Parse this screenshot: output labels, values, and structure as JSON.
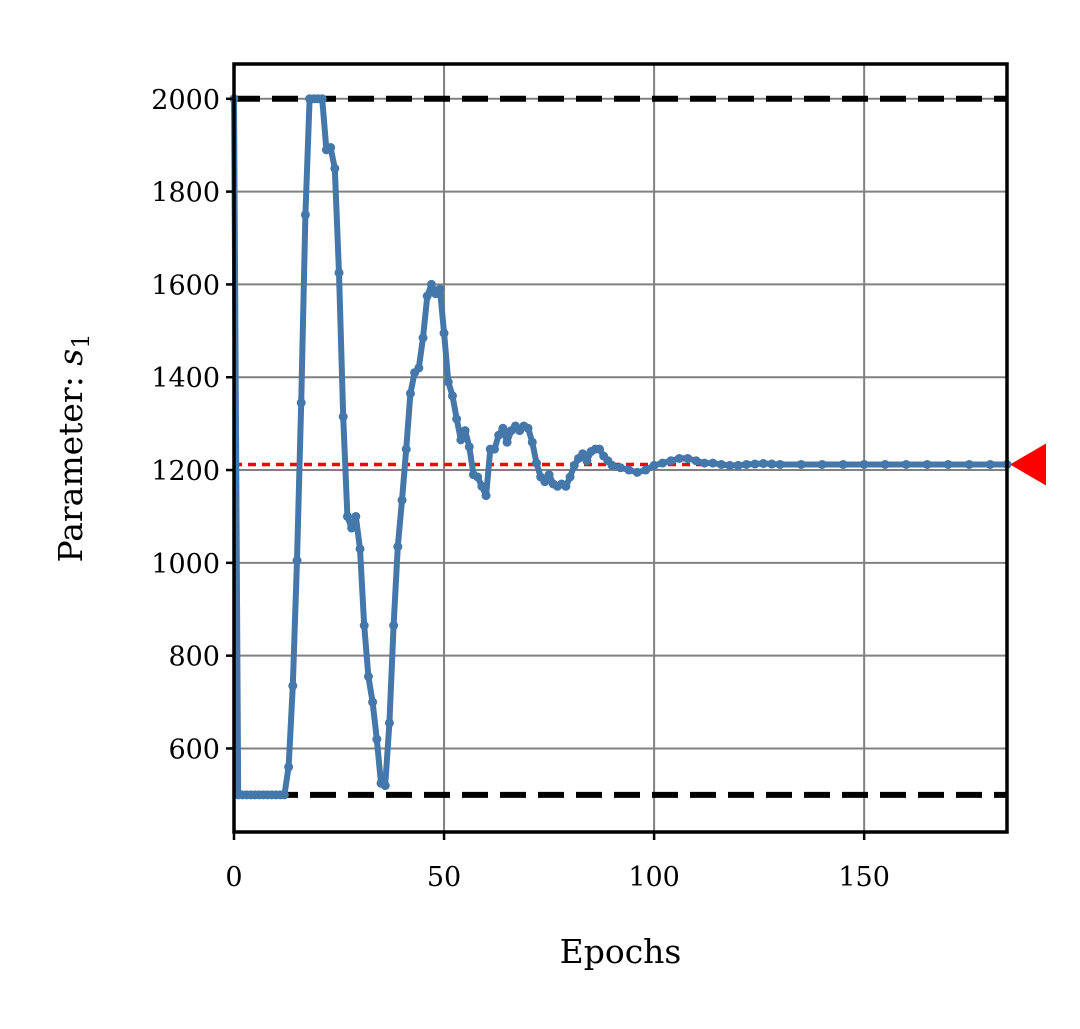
{
  "chart_data": {
    "type": "line",
    "title": "",
    "xlabel": "Epochs",
    "ylabel_text": "Parameter: ",
    "ylabel_symbol": "s",
    "ylabel_subscript": "1",
    "xlim": [
      0,
      184
    ],
    "ylim": [
      420,
      2075
    ],
    "xticks": [
      0,
      50,
      100,
      150
    ],
    "yticks": [
      600,
      800,
      1000,
      1200,
      1400,
      1600,
      1800,
      2000
    ],
    "grid": true,
    "legend": "none",
    "bounds": {
      "upper": 2000,
      "lower": 500
    },
    "target": 1212,
    "colors": {
      "series": "#4477aa",
      "bounds": "#000000",
      "target": "#ff0000"
    },
    "series": [
      {
        "x": [
          0,
          1,
          2,
          3,
          4,
          5,
          6,
          7,
          8,
          9,
          10,
          11,
          12,
          13,
          14,
          15,
          16,
          17,
          18,
          19,
          20,
          21,
          22,
          23,
          24,
          25,
          26,
          27,
          28,
          29,
          30,
          31,
          32,
          33,
          34,
          35,
          36,
          37,
          38,
          39,
          40,
          41,
          42,
          43,
          44,
          45,
          46,
          47,
          48,
          49,
          50,
          51,
          52,
          53,
          54,
          55,
          56,
          57,
          58,
          59,
          60,
          61,
          62,
          63,
          64,
          65,
          66,
          67,
          68,
          69,
          70,
          71,
          72,
          73,
          74,
          75,
          76,
          77,
          78,
          79,
          80,
          81,
          82,
          83,
          84,
          85,
          86,
          87,
          88,
          89,
          90,
          92,
          94,
          96,
          98,
          100,
          102,
          104,
          106,
          108,
          110,
          112,
          114,
          116,
          118,
          120,
          122,
          124,
          126,
          128,
          130,
          135,
          140,
          145,
          150,
          155,
          160,
          165,
          170,
          175,
          180,
          184
        ],
        "values": [
          2000,
          500,
          500,
          500,
          500,
          500,
          500,
          500,
          500,
          500,
          500,
          500,
          500,
          560,
          735,
          1005,
          1345,
          1750,
          2000,
          2000,
          2000,
          2000,
          1890,
          1895,
          1850,
          1625,
          1315,
          1100,
          1075,
          1100,
          1030,
          865,
          755,
          700,
          620,
          525,
          520,
          655,
          865,
          1035,
          1135,
          1245,
          1365,
          1410,
          1420,
          1485,
          1575,
          1600,
          1580,
          1590,
          1495,
          1390,
          1360,
          1310,
          1265,
          1285,
          1250,
          1190,
          1185,
          1165,
          1145,
          1245,
          1245,
          1275,
          1290,
          1260,
          1285,
          1295,
          1285,
          1295,
          1290,
          1260,
          1215,
          1185,
          1175,
          1190,
          1170,
          1165,
          1170,
          1165,
          1185,
          1210,
          1225,
          1235,
          1220,
          1240,
          1245,
          1245,
          1230,
          1220,
          1210,
          1205,
          1200,
          1195,
          1200,
          1210,
          1215,
          1220,
          1225,
          1225,
          1220,
          1215,
          1215,
          1212,
          1210,
          1210,
          1212,
          1213,
          1214,
          1213,
          1212,
          1212,
          1212,
          1212,
          1212,
          1212,
          1212,
          1212,
          1212,
          1212,
          1212,
          1212
        ]
      }
    ]
  }
}
